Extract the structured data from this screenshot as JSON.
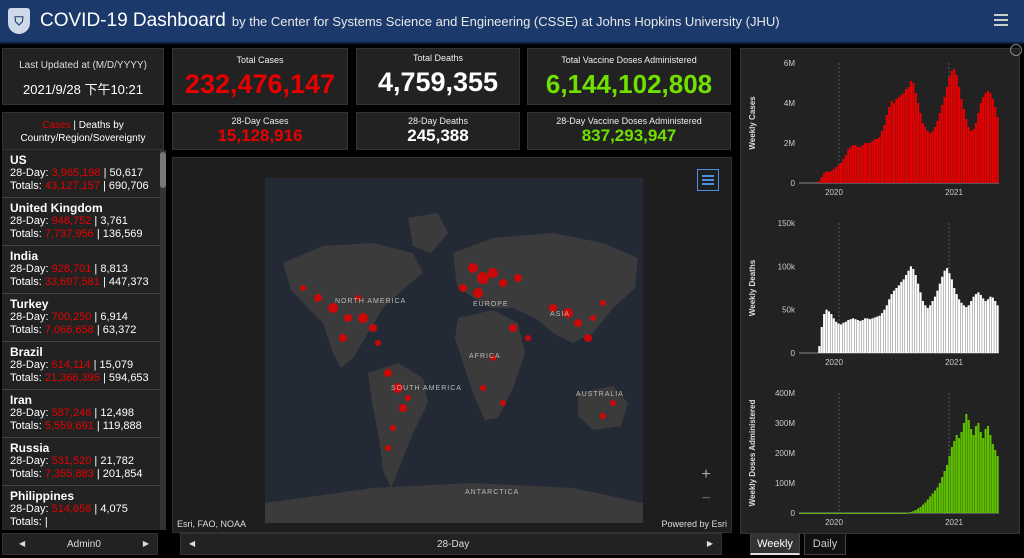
{
  "header": {
    "title": "COVID-19 Dashboard",
    "subtitle": "by the Center for Systems Science and Engineering (CSSE) at Johns Hopkins University (JHU)"
  },
  "last_updated": {
    "label": "Last Updated at (M/D/YYYY)",
    "value": "2021/9/28 下午10:21"
  },
  "totals": {
    "cases_label": "Total Cases",
    "cases_value": "232,476,147",
    "deaths_label": "Total Deaths",
    "deaths_value": "4,759,355",
    "vaccine_label": "Total Vaccine Doses Administered",
    "vaccine_value": "6,144,102,808"
  },
  "day28": {
    "cases_label": "28-Day Cases",
    "cases_value": "15,128,916",
    "deaths_label": "28-Day Deaths",
    "deaths_value": "245,388",
    "vaccine_label": "28-Day Vaccine Doses Administered",
    "vaccine_value": "837,293,947"
  },
  "list_header": {
    "cases": "Cases",
    "sep": " | ",
    "deaths": "Deaths",
    "by": " by",
    "line2": "Country/Region/Sovereignty"
  },
  "countries": [
    {
      "name": "US",
      "d28_label": "28-Day: ",
      "d28_cases": "3,965,198",
      "d28_deaths": "50,617",
      "tot_label": "Totals: ",
      "tot_cases": "43,127,157",
      "tot_deaths": "690,706"
    },
    {
      "name": "United Kingdom",
      "d28_label": "28-Day: ",
      "d28_cases": "948,752",
      "d28_deaths": "3,761",
      "tot_label": "Totals: ",
      "tot_cases": "7,737,956",
      "tot_deaths": "136,569"
    },
    {
      "name": "India",
      "d28_label": "28-Day: ",
      "d28_cases": "928,701",
      "d28_deaths": "8,813",
      "tot_label": "Totals: ",
      "tot_cases": "33,697,581",
      "tot_deaths": "447,373"
    },
    {
      "name": "Turkey",
      "d28_label": "28-Day: ",
      "d28_cases": "700,250",
      "d28_deaths": "6,914",
      "tot_label": "Totals: ",
      "tot_cases": "7,066,658",
      "tot_deaths": "63,372"
    },
    {
      "name": "Brazil",
      "d28_label": "28-Day: ",
      "d28_cases": "614,114",
      "d28_deaths": "15,079",
      "tot_label": "Totals: ",
      "tot_cases": "21,366,395",
      "tot_deaths": "594,653"
    },
    {
      "name": "Iran",
      "d28_label": "28-Day: ",
      "d28_cases": "587,246",
      "d28_deaths": "12,498",
      "tot_label": "Totals: ",
      "tot_cases": "5,559,691",
      "tot_deaths": "119,888"
    },
    {
      "name": "Russia",
      "d28_label": "28-Day: ",
      "d28_cases": "531,520",
      "d28_deaths": "21,782",
      "tot_label": "Totals: ",
      "tot_cases": "7,355,883",
      "tot_deaths": "201,854"
    },
    {
      "name": "Philippines",
      "d28_label": "28-Day: ",
      "d28_cases": "514,656",
      "d28_deaths": "4,075",
      "tot_label": "Totals: ",
      "tot_cases": "",
      "tot_deaths": ""
    }
  ],
  "bottom": {
    "left_label": "Admin0",
    "center_label": "28-Day",
    "weekly": "Weekly",
    "daily": "Daily"
  },
  "map": {
    "labels": {
      "north_america": "NORTH AMERICA",
      "south_america": "SOUTH AMERICA",
      "europe": "EUROPE",
      "asia": "ASIA",
      "africa": "AFRICA",
      "australia": "AUSTRALIA",
      "antarctica": "ANTARCTICA"
    },
    "attribution_left": "Esri, FAO, NOAA",
    "attribution_right": "Powered by Esri",
    "zoom_in": "+",
    "zoom_out": "−"
  },
  "colors": {
    "cases": "#e60000",
    "deaths": "#ffffff",
    "vaccine": "#5fc000",
    "header": "#1b3a6b"
  },
  "chart_data": [
    {
      "type": "area",
      "ylabel": "Weekly Cases",
      "yticks": [
        "0",
        "2M",
        "4M",
        "6M"
      ],
      "xticks": [
        "2020",
        "2021"
      ],
      "ylim": [
        0,
        6000000
      ],
      "color": "#e60000",
      "values": [
        0,
        0,
        0,
        0,
        0,
        0,
        0,
        0,
        100000,
        300000,
        500000,
        600000,
        550000,
        600000,
        700000,
        800000,
        900000,
        1000000,
        1200000,
        1400000,
        1700000,
        1800000,
        1900000,
        1900000,
        1800000,
        1800000,
        1900000,
        2000000,
        2000000,
        2000000,
        2100000,
        2200000,
        2200000,
        2300000,
        2600000,
        2900000,
        3400000,
        3800000,
        4100000,
        4000000,
        4200000,
        4300000,
        4400000,
        4500000,
        4700000,
        4800000,
        5100000,
        5000000,
        4500000,
        4000000,
        3500000,
        3000000,
        2800000,
        2600000,
        2500000,
        2600000,
        2800000,
        3100000,
        3500000,
        3900000,
        4300000,
        4800000,
        5300000,
        5600000,
        5700000,
        5400000,
        4800000,
        4200000,
        3700000,
        3200000,
        2800000,
        2600000,
        2700000,
        3000000,
        3500000,
        4000000,
        4300000,
        4500000,
        4600000,
        4500000,
        4200000,
        3800000,
        3300000
      ]
    },
    {
      "type": "area",
      "ylabel": "Weekly Deaths",
      "yticks": [
        "0",
        "50k",
        "100k",
        "150k"
      ],
      "xticks": [
        "2020",
        "2021"
      ],
      "ylim": [
        0,
        150000
      ],
      "color": "#ffffff",
      "values": [
        0,
        0,
        0,
        0,
        0,
        0,
        0,
        0,
        8000,
        30000,
        45000,
        50000,
        48000,
        45000,
        40000,
        36000,
        34000,
        33000,
        35000,
        36000,
        38000,
        39000,
        40000,
        39000,
        38000,
        37000,
        38000,
        40000,
        40000,
        39000,
        40000,
        41000,
        42000,
        43000,
        46000,
        50000,
        55000,
        62000,
        68000,
        72000,
        75000,
        78000,
        82000,
        85000,
        90000,
        95000,
        100000,
        97000,
        90000,
        80000,
        70000,
        60000,
        55000,
        52000,
        55000,
        60000,
        65000,
        72000,
        80000,
        88000,
        95000,
        98000,
        92000,
        85000,
        75000,
        68000,
        62000,
        58000,
        55000,
        53000,
        55000,
        60000,
        65000,
        68000,
        70000,
        67000,
        63000,
        60000,
        62000,
        65000,
        64000,
        60000,
        55000
      ]
    },
    {
      "type": "bar",
      "ylabel": "Weekly Doses Administered",
      "yticks": [
        "0",
        "100M",
        "200M",
        "300M",
        "400M"
      ],
      "xticks": [
        "2020",
        "2021"
      ],
      "ylim": [
        0,
        400000000
      ],
      "color": "#5fc000",
      "values": [
        0,
        0,
        0,
        0,
        0,
        0,
        0,
        0,
        0,
        0,
        0,
        0,
        0,
        0,
        0,
        0,
        0,
        0,
        0,
        0,
        0,
        0,
        0,
        0,
        0,
        0,
        0,
        0,
        0,
        0,
        0,
        0,
        0,
        0,
        0,
        0,
        0,
        0,
        0,
        0,
        0,
        0,
        0,
        0,
        0,
        1000000,
        3000000,
        6000000,
        10000000,
        15000000,
        20000000,
        28000000,
        35000000,
        45000000,
        55000000,
        65000000,
        75000000,
        85000000,
        100000000,
        120000000,
        140000000,
        160000000,
        190000000,
        220000000,
        240000000,
        260000000,
        250000000,
        270000000,
        300000000,
        330000000,
        310000000,
        280000000,
        260000000,
        290000000,
        300000000,
        270000000,
        250000000,
        280000000,
        290000000,
        260000000,
        230000000,
        210000000,
        190000000
      ]
    }
  ]
}
